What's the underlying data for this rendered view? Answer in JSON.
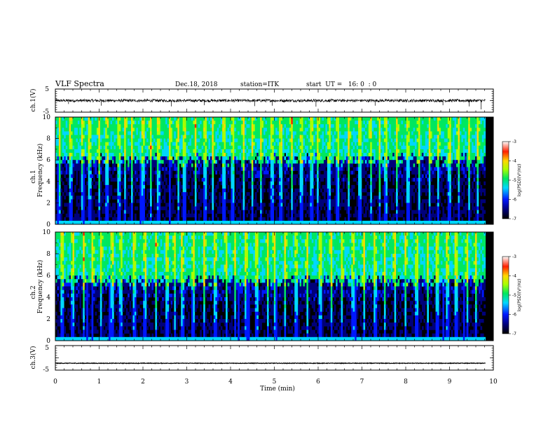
{
  "header": {
    "title": "VLF Spectra",
    "date": "Dec.18, 2018",
    "station": "station=ITK",
    "start": "start  UT =   16: 0  : 0"
  },
  "chart_data": [
    {
      "type": "line",
      "name": "ch1-waveform",
      "ylabel": "ch.1(V)",
      "xlim": [
        0,
        10
      ],
      "ylim": [
        -5,
        5
      ],
      "yticks": [
        "5",
        "-5"
      ],
      "baseline": 0,
      "noise_amplitude": 0.6,
      "spikes": [
        {
          "x": 0.3,
          "y": -1.5
        },
        {
          "x": 1.05,
          "y": -2.2
        },
        {
          "x": 2.65,
          "y": -2.5
        },
        {
          "x": 3.4,
          "y": -2.0
        },
        {
          "x": 4.55,
          "y": -2.4
        },
        {
          "x": 4.95,
          "y": -2.2
        },
        {
          "x": 5.95,
          "y": -2.6
        },
        {
          "x": 7.3,
          "y": -2.2
        },
        {
          "x": 8.85,
          "y": -2.0
        },
        {
          "x": 9.45,
          "y": -2.5
        },
        {
          "x": 9.72,
          "y": -3.8
        }
      ]
    },
    {
      "type": "heatmap",
      "name": "ch1-spectrogram",
      "ylabel": "ch.1 Frequency (kHz)",
      "xlim": [
        0,
        10
      ],
      "ylim": [
        0,
        10
      ],
      "yticks": [
        "0",
        "2",
        "4",
        "6",
        "8",
        "10"
      ],
      "data_xmax": 9.82,
      "colorbar": {
        "label": "log(PSD)(V²/Hz)",
        "min": -7,
        "max": -3,
        "ticks": [
          "-3",
          "-4",
          "-5",
          "-6",
          "-7"
        ]
      },
      "band_edge_khz": 6.0,
      "bursts_min": [
        0.1,
        0.35,
        0.62,
        0.78,
        1.0,
        1.18,
        1.45,
        1.6,
        1.75,
        2.0,
        2.18,
        2.35,
        2.62,
        2.8,
        2.95,
        3.2,
        3.42,
        3.6,
        3.85,
        4.05,
        4.3,
        4.5,
        4.7,
        4.95,
        5.15,
        5.4,
        5.62,
        5.85,
        6.0,
        6.25,
        6.45,
        6.7,
        6.95,
        7.2,
        7.4,
        7.55,
        7.8,
        8.05,
        8.3,
        8.55,
        8.75,
        9.0,
        9.2,
        9.45,
        9.65
      ]
    },
    {
      "type": "heatmap",
      "name": "ch2-spectrogram",
      "ylabel": "ch.2 Frequency (kHz)",
      "xlim": [
        0,
        10
      ],
      "ylim": [
        0,
        10
      ],
      "yticks": [
        "0",
        "2",
        "4",
        "6",
        "8",
        "10"
      ],
      "data_xmax": 9.82,
      "colorbar": {
        "label": "log(PSD)(V²/Hz)",
        "min": -7,
        "max": -3,
        "ticks": [
          "-3",
          "-4",
          "-5",
          "-6",
          "-7"
        ]
      },
      "band_edge_khz": 5.5,
      "bursts_min": [
        0.15,
        0.4,
        0.65,
        0.85,
        1.05,
        1.3,
        1.5,
        1.8,
        2.05,
        2.3,
        2.55,
        2.72,
        2.9,
        3.15,
        3.4,
        3.65,
        3.9,
        4.1,
        4.35,
        4.6,
        4.85,
        5.0,
        5.25,
        5.5,
        5.75,
        6.05,
        6.3,
        6.55,
        6.8,
        7.05,
        7.3,
        7.52,
        7.75,
        8.0,
        8.25,
        8.5,
        8.72,
        8.95,
        9.15,
        9.4,
        9.6
      ]
    },
    {
      "type": "line",
      "name": "ch3-waveform",
      "ylabel": "ch.3(V)",
      "xlim": [
        0,
        10
      ],
      "ylim": [
        -5,
        5
      ],
      "yticks": [
        "5",
        "-5"
      ],
      "baseline": -2.2,
      "noise_amplitude": 0.12,
      "spikes": []
    }
  ],
  "xaxis": {
    "label": "Time (min)",
    "ticks": [
      "0",
      "1",
      "2",
      "3",
      "4",
      "5",
      "6",
      "7",
      "8",
      "9",
      "10"
    ]
  }
}
